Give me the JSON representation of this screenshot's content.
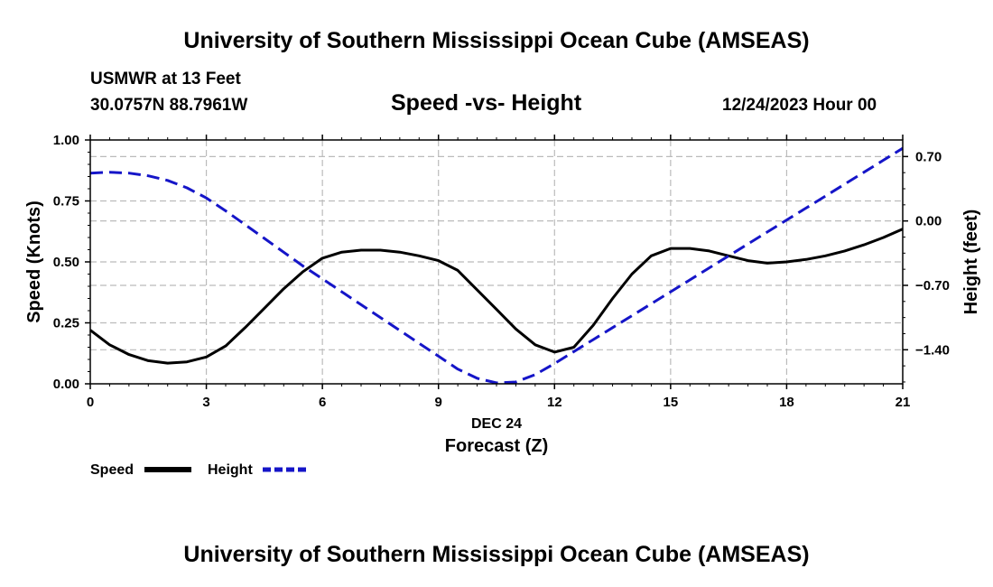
{
  "header": {
    "title": "University of Southern Mississippi Ocean Cube (AMSEAS)",
    "station": "USMWR at 13 Feet",
    "coords": "30.0757N  88.7961W",
    "subtitle": "Speed -vs- Height",
    "datetime": "12/24/2023 Hour 00"
  },
  "footer": {
    "title": "University of Southern Mississippi Ocean Cube (AMSEAS)"
  },
  "colors": {
    "speed": "#000000",
    "height": "#1515c8",
    "grid": "#bbbbbb",
    "axis": "#000000"
  },
  "chart_data": {
    "type": "line",
    "title": "Speed -vs- Height",
    "xlabel": "Forecast (Z)",
    "xlabel_sub": "DEC 24",
    "ylabel": "Speed (Knots)",
    "y2label": "Height (feet)",
    "xlim": [
      0,
      21
    ],
    "ylim": [
      0,
      1
    ],
    "y2lim": [
      -1.77,
      0.88
    ],
    "xticks": [
      0,
      3,
      6,
      9,
      12,
      15,
      18,
      21
    ],
    "xtick_labels": [
      "0",
      "3",
      "6",
      "9",
      "12",
      "15",
      "18",
      "21"
    ],
    "yticks": [
      0,
      0.25,
      0.5,
      0.75,
      1.0
    ],
    "ytick_labels": [
      "0.00",
      "0.25",
      "0.50",
      "0.75",
      "1.00"
    ],
    "y2ticks": [
      0.7,
      0,
      -0.7,
      -1.4
    ],
    "y2tick_labels": [
      "0.70",
      "0.00",
      "−0.70",
      "−1.40"
    ],
    "grid": true,
    "legend_position": "bottom-left",
    "series": [
      {
        "name": "Speed",
        "axis": "left",
        "style": "solid",
        "x": [
          0,
          0.5,
          1,
          1.5,
          2,
          2.5,
          3,
          3.5,
          4,
          4.5,
          5,
          5.5,
          6,
          6.5,
          7,
          7.5,
          8,
          8.5,
          9,
          9.5,
          10,
          10.5,
          11,
          11.5,
          12,
          12.5,
          13,
          13.5,
          14,
          14.5,
          15,
          15.5,
          16,
          16.5,
          17,
          17.5,
          18,
          18.5,
          19,
          19.5,
          20,
          20.5,
          21
        ],
        "y": [
          0.22,
          0.16,
          0.12,
          0.095,
          0.085,
          0.09,
          0.11,
          0.155,
          0.23,
          0.31,
          0.39,
          0.46,
          0.515,
          0.54,
          0.548,
          0.548,
          0.54,
          0.525,
          0.505,
          0.465,
          0.385,
          0.305,
          0.225,
          0.16,
          0.13,
          0.15,
          0.24,
          0.35,
          0.45,
          0.525,
          0.555,
          0.555,
          0.545,
          0.525,
          0.505,
          0.495,
          0.5,
          0.51,
          0.525,
          0.545,
          0.57,
          0.6,
          0.635
        ]
      },
      {
        "name": "Height",
        "axis": "right",
        "style": "dashed",
        "x": [
          0,
          0.5,
          1,
          1.5,
          2,
          2.5,
          3,
          3.5,
          4,
          4.5,
          5,
          5.5,
          6,
          6.5,
          7,
          7.5,
          8,
          8.5,
          9,
          9.5,
          10,
          10.5,
          11,
          11.5,
          12,
          12.5,
          13,
          13.5,
          14,
          14.5,
          15,
          15.5,
          16,
          16.5,
          17,
          17.5,
          18,
          18.5,
          19,
          19.5,
          20,
          20.5,
          21
        ],
        "y": [
          0.52,
          0.53,
          0.52,
          0.49,
          0.44,
          0.36,
          0.25,
          0.11,
          -0.04,
          -0.19,
          -0.34,
          -0.49,
          -0.63,
          -0.77,
          -0.91,
          -1.05,
          -1.19,
          -1.33,
          -1.47,
          -1.61,
          -1.71,
          -1.76,
          -1.75,
          -1.67,
          -1.55,
          -1.42,
          -1.29,
          -1.16,
          -1.03,
          -0.9,
          -0.77,
          -0.64,
          -0.51,
          -0.38,
          -0.25,
          -0.12,
          0.01,
          0.14,
          0.27,
          0.4,
          0.53,
          0.66,
          0.79
        ]
      }
    ]
  }
}
